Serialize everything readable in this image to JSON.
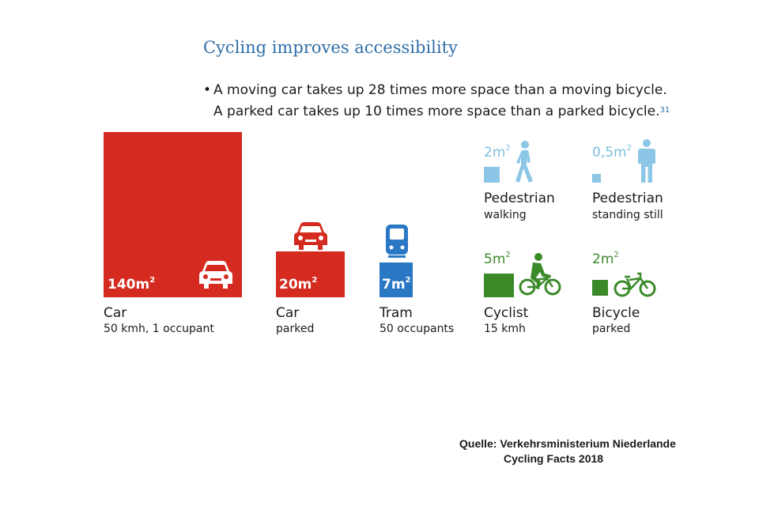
{
  "title": "Cycling improves accessibility",
  "bullet": {
    "symbol": "•",
    "line1": "A moving car takes up 28 times more space than a moving bicycle.",
    "line2": "A parked car takes up 10 times more space than a parked bicycle.",
    "footnote": "31"
  },
  "items": {
    "car_moving": {
      "area": "140m",
      "sup": "2",
      "name": "Car",
      "sub": "50 kmh, 1 occupant",
      "value_m2": 140,
      "color": "#d42a20",
      "icon": "car-front-icon"
    },
    "car_parked": {
      "area": "20m",
      "sup": "2",
      "name": "Car",
      "sub": "parked",
      "value_m2": 20,
      "color": "#d42a20",
      "icon": "car-front-icon"
    },
    "tram": {
      "area": "7m",
      "sup": "2",
      "name": "Tram",
      "sub": "50 occupants",
      "value_m2": 7,
      "color": "#2a77c4",
      "icon": "tram-icon"
    },
    "ped_walking": {
      "area": "2m",
      "sup": "2",
      "name": "Pedestrian",
      "sub": "walking",
      "value_m2": 2,
      "color": "#8cc6e6",
      "icon": "walking-person-icon"
    },
    "ped_standing": {
      "area": "0,5m",
      "sup": "2",
      "name": "Pedestrian",
      "sub": "standing still",
      "value_m2": 0.5,
      "color": "#8cc6e6",
      "icon": "standing-person-icon"
    },
    "cyclist": {
      "area": "5m",
      "sup": "2",
      "name": "Cyclist",
      "sub": "15 kmh",
      "value_m2": 5,
      "color": "#3b8a2a",
      "icon": "cyclist-icon"
    },
    "bicycle_parked": {
      "area": "2m",
      "sup": "2",
      "name": "Bicycle",
      "sub": "parked",
      "value_m2": 2,
      "color": "#3b8a2a",
      "icon": "bicycle-icon"
    }
  },
  "source": {
    "line1": "Quelle: Verkehrsministerium Niederlande",
    "line2": "Cycling Facts 2018"
  }
}
